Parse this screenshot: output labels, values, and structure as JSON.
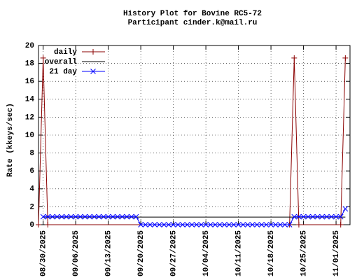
{
  "chart_data": {
    "type": "line",
    "title": "History Plot for Bovine RC5-72",
    "subtitle": "Participant cinder.k@mail.ru",
    "y_label": "Rate (kkeys/sec)",
    "xlim": [
      "08/29/2025",
      "11/04/2025"
    ],
    "xticks": [
      "08/30/2025",
      "09/06/2025",
      "09/13/2025",
      "09/20/2025",
      "09/27/2025",
      "10/04/2025",
      "10/11/2025",
      "10/18/2025",
      "10/25/2025",
      "11/01/2025"
    ],
    "ylim": [
      0,
      20
    ],
    "yticks": [
      0,
      2,
      4,
      6,
      8,
      10,
      12,
      14,
      16,
      18,
      20
    ],
    "grid": true,
    "legend": "upper-left",
    "series": [
      {
        "name": "daily",
        "color": "#8b0000",
        "marker": "plus",
        "x": [
          "08/29/2025",
          "08/30/2025",
          "08/31/2025",
          "10/22/2025",
          "10/23/2025",
          "10/24/2025",
          "11/02/2025",
          "11/03/2025"
        ],
        "values": [
          0,
          18.6,
          0,
          0,
          18.6,
          0,
          0,
          18.6
        ]
      },
      {
        "name": "overall",
        "color": "#000000",
        "marker": "none",
        "x": [
          "08/30/2025",
          "11/03/2025"
        ],
        "values": [
          0.85,
          0.85
        ]
      },
      {
        "name": "21 day",
        "color": "#0000ff",
        "marker": "cross",
        "x": [
          "08/30/2025",
          "08/31/2025",
          "09/01/2025",
          "09/02/2025",
          "09/03/2025",
          "09/04/2025",
          "09/05/2025",
          "09/06/2025",
          "09/07/2025",
          "09/08/2025",
          "09/09/2025",
          "09/10/2025",
          "09/11/2025",
          "09/12/2025",
          "09/13/2025",
          "09/14/2025",
          "09/15/2025",
          "09/16/2025",
          "09/17/2025",
          "09/18/2025",
          "09/19/2025",
          "09/20/2025",
          "09/21/2025",
          "09/22/2025",
          "09/23/2025",
          "09/24/2025",
          "09/25/2025",
          "09/26/2025",
          "09/27/2025",
          "09/28/2025",
          "09/29/2025",
          "09/30/2025",
          "10/01/2025",
          "10/02/2025",
          "10/03/2025",
          "10/04/2025",
          "10/05/2025",
          "10/06/2025",
          "10/07/2025",
          "10/08/2025",
          "10/09/2025",
          "10/10/2025",
          "10/11/2025",
          "10/12/2025",
          "10/13/2025",
          "10/14/2025",
          "10/15/2025",
          "10/16/2025",
          "10/17/2025",
          "10/18/2025",
          "10/19/2025",
          "10/20/2025",
          "10/21/2025",
          "10/22/2025",
          "10/23/2025",
          "10/24/2025",
          "10/25/2025",
          "10/26/2025",
          "10/27/2025",
          "10/28/2025",
          "10/29/2025",
          "10/30/2025",
          "10/31/2025",
          "11/01/2025",
          "11/02/2025",
          "11/03/2025"
        ],
        "values": [
          0.89,
          0.89,
          0.89,
          0.89,
          0.89,
          0.89,
          0.89,
          0.89,
          0.89,
          0.89,
          0.89,
          0.89,
          0.89,
          0.89,
          0.89,
          0.89,
          0.89,
          0.89,
          0.89,
          0.89,
          0.89,
          0,
          0,
          0,
          0,
          0,
          0,
          0,
          0,
          0,
          0,
          0,
          0,
          0,
          0,
          0,
          0,
          0,
          0,
          0,
          0,
          0,
          0,
          0,
          0,
          0,
          0,
          0,
          0,
          0,
          0,
          0,
          0,
          0,
          0.89,
          0.89,
          0.89,
          0.89,
          0.89,
          0.89,
          0.89,
          0.89,
          0.89,
          0.89,
          0.89,
          1.77
        ]
      }
    ]
  }
}
